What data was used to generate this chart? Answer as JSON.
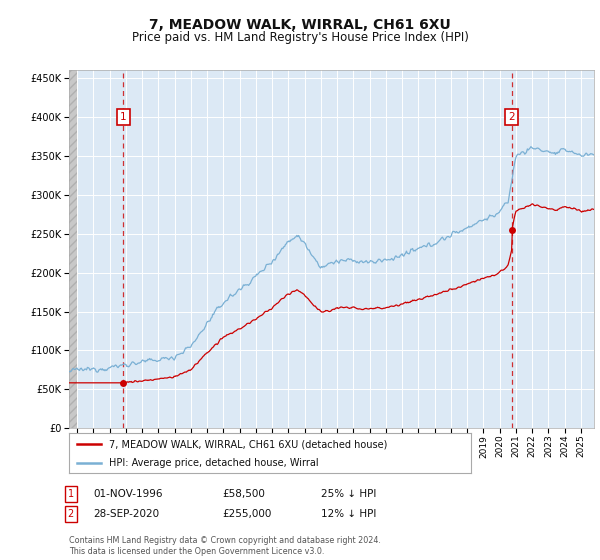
{
  "title": "7, MEADOW WALK, WIRRAL, CH61 6XU",
  "subtitle": "Price paid vs. HM Land Registry's House Price Index (HPI)",
  "legend_line1": "7, MEADOW WALK, WIRRAL, CH61 6XU (detached house)",
  "legend_line2": "HPI: Average price, detached house, Wirral",
  "transaction1_date": "01-NOV-1996",
  "transaction1_price": "£58,500",
  "transaction1_hpi": "25% ↓ HPI",
  "transaction2_date": "28-SEP-2020",
  "transaction2_price": "£255,000",
  "transaction2_hpi": "12% ↓ HPI",
  "footer": "Contains HM Land Registry data © Crown copyright and database right 2024.\nThis data is licensed under the Open Government Licence v3.0.",
  "property_color": "#cc0000",
  "hpi_color": "#7ab0d4",
  "background_color": "#ffffff",
  "plot_bg_color": "#dce9f5",
  "grid_color": "#ffffff",
  "ylim": [
    0,
    460000
  ],
  "yticks": [
    0,
    50000,
    100000,
    150000,
    200000,
    250000,
    300000,
    350000,
    400000,
    450000
  ],
  "xlim_start": 1993.5,
  "xlim_end": 2025.8,
  "transaction1_year": 1996.83,
  "transaction1_value": 58500,
  "transaction2_year": 2020.75,
  "transaction2_value": 255000
}
